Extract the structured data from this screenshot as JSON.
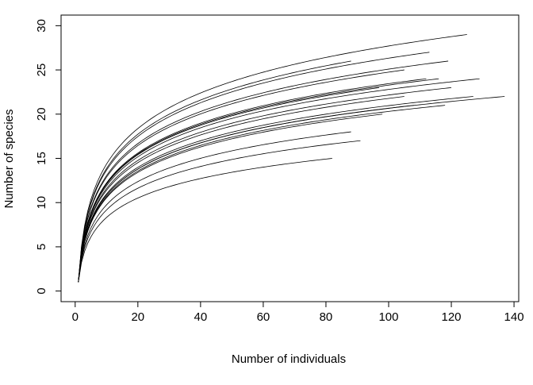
{
  "chart_data": {
    "type": "line",
    "title": "",
    "xlabel": "Number of individuals",
    "ylabel": "Number of species",
    "xlim": [
      -4.5,
      141.5
    ],
    "ylim": [
      -1.2,
      31.2
    ],
    "xticks": [
      0,
      20,
      40,
      60,
      80,
      100,
      120,
      140
    ],
    "yticks": [
      0,
      5,
      10,
      15,
      20,
      25,
      30
    ],
    "grid": false,
    "legend": "none",
    "line_color": "#000000",
    "curve_model": "S(n) = 1 + (S_total - 1) * log(n) / log(N)",
    "series": [
      {
        "n_individuals": 125,
        "n_species": 29
      },
      {
        "n_individuals": 113,
        "n_species": 27
      },
      {
        "n_individuals": 119,
        "n_species": 26
      },
      {
        "n_individuals": 88,
        "n_species": 26
      },
      {
        "n_individuals": 105,
        "n_species": 25
      },
      {
        "n_individuals": 129,
        "n_species": 24
      },
      {
        "n_individuals": 116,
        "n_species": 24
      },
      {
        "n_individuals": 112,
        "n_species": 24
      },
      {
        "n_individuals": 97,
        "n_species": 23
      },
      {
        "n_individuals": 120,
        "n_species": 23
      },
      {
        "n_individuals": 105,
        "n_species": 22
      },
      {
        "n_individuals": 137,
        "n_species": 22
      },
      {
        "n_individuals": 127,
        "n_species": 22
      },
      {
        "n_individuals": 108,
        "n_species": 21
      },
      {
        "n_individuals": 118,
        "n_species": 21
      },
      {
        "n_individuals": 98,
        "n_species": 20
      },
      {
        "n_individuals": 88,
        "n_species": 18
      },
      {
        "n_individuals": 91,
        "n_species": 17
      },
      {
        "n_individuals": 82,
        "n_species": 15
      }
    ]
  }
}
